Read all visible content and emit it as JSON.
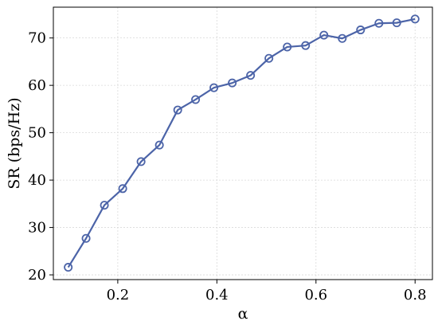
{
  "chart_data": {
    "type": "line",
    "title": "",
    "xlabel": "α",
    "ylabel": "SR (bps/Hz)",
    "xlim": [
      0.07,
      0.835
    ],
    "ylim": [
      19,
      76.5
    ],
    "xticks": [
      0.2,
      0.4,
      0.6,
      0.8
    ],
    "xtick_labels": [
      "0.2",
      "0.4",
      "0.6",
      "0.8"
    ],
    "yticks": [
      20,
      30,
      40,
      50,
      60,
      70
    ],
    "ytick_labels": [
      "20",
      "30",
      "40",
      "50",
      "60",
      "70"
    ],
    "grid": true,
    "legend": "none",
    "series": [
      {
        "color": "#4c64a8",
        "marker": "open-circle",
        "x": [
          0.1,
          0.136,
          0.173,
          0.21,
          0.247,
          0.284,
          0.321,
          0.357,
          0.394,
          0.431,
          0.468,
          0.505,
          0.542,
          0.579,
          0.616,
          0.653,
          0.69,
          0.727,
          0.763,
          0.8
        ],
        "y": [
          21.6,
          27.7,
          34.7,
          38.2,
          43.9,
          47.4,
          54.8,
          57.0,
          59.5,
          60.5,
          62.1,
          65.7,
          68.1,
          68.4,
          70.6,
          69.9,
          71.7,
          73.1,
          73.2,
          74.0
        ]
      }
    ]
  }
}
